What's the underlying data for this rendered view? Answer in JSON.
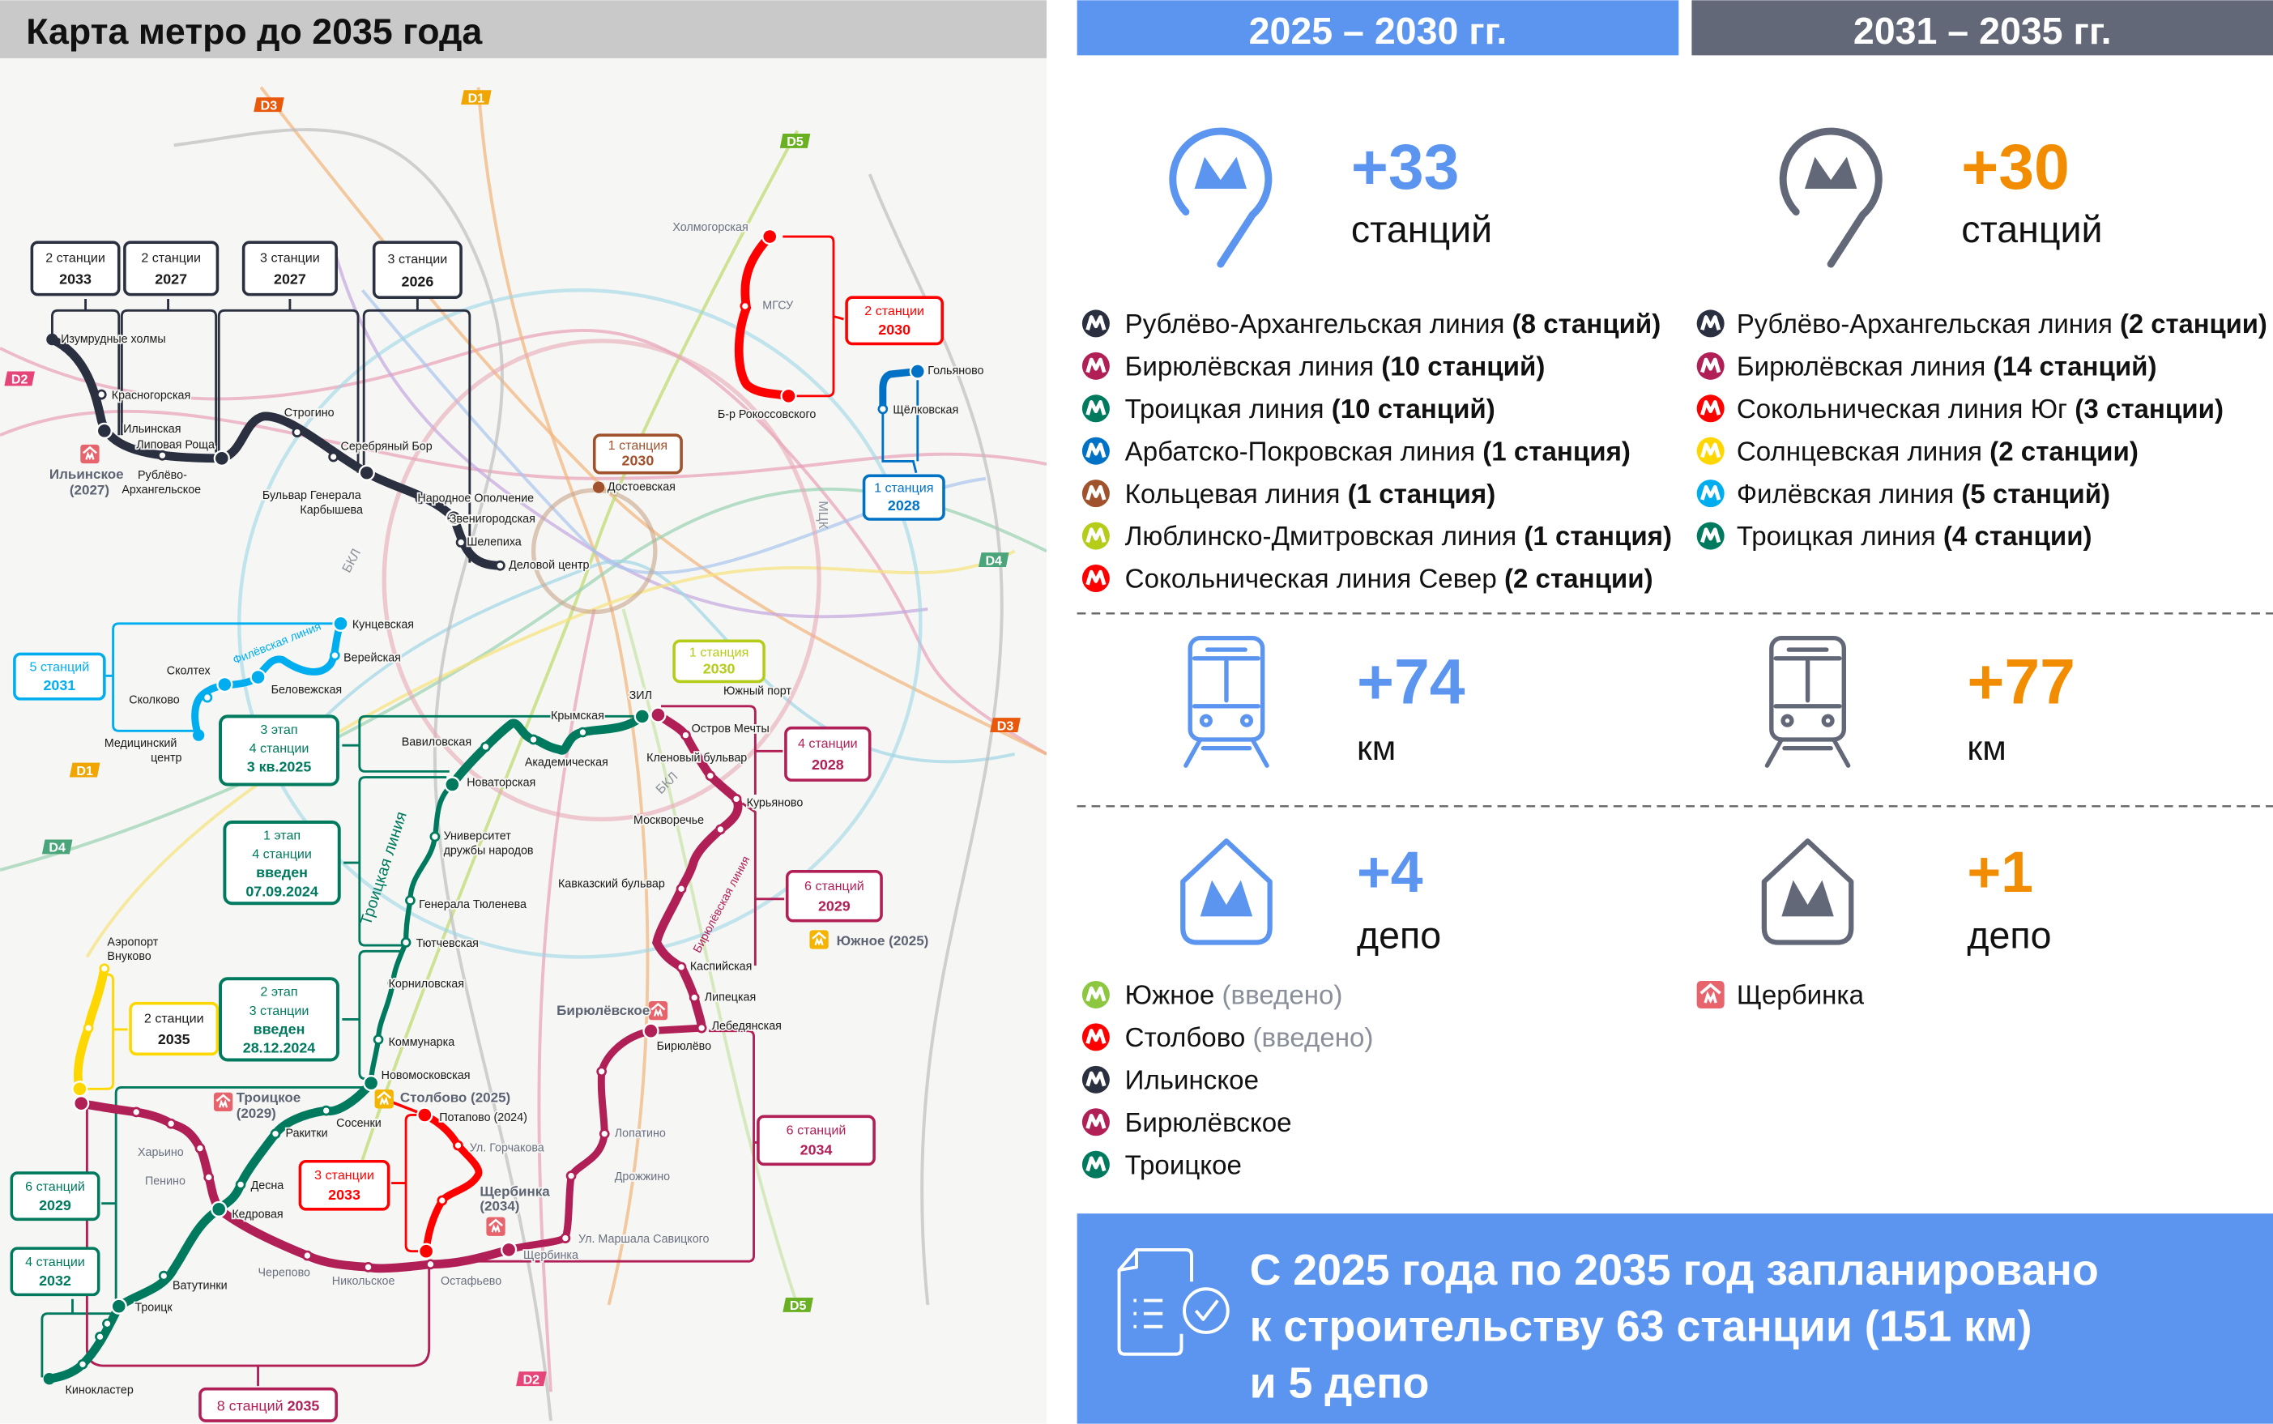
{
  "title": "Карта метро до 2035 года",
  "periods": [
    {
      "label": "2025 – 2030 гг.",
      "header_color": "#5b95f0",
      "accent": "#5b95f0",
      "number_color": "#5b95f0",
      "stations": {
        "value": "+33",
        "unit": "станций"
      },
      "km": {
        "value": "+74",
        "unit": "км"
      },
      "depots": {
        "value": "+4",
        "unit": "депо"
      },
      "lines": [
        {
          "name": "Рублёво-Архангельская линия ",
          "count": "(8 станций)",
          "color": "#2b3040"
        },
        {
          "name": "Бирюлёвская линия ",
          "count": "(10 станций)",
          "color": "#b11f57"
        },
        {
          "name": "Троицкая линия ",
          "count": "(10 станций)",
          "color": "#007a5e"
        },
        {
          "name": "Арбатско-Покровская линия ",
          "count": "(1 станция)",
          "color": "#0072c6"
        },
        {
          "name": "Кольцевая линия ",
          "count": "(1 станция)",
          "color": "#a0522d"
        },
        {
          "name": "Люблинско-Дмитровская линия ",
          "count": "(1 станция)",
          "color": "#b5cc18"
        },
        {
          "name": "Сокольническая линия Север ",
          "count": "(2 станции)",
          "color": "#ff0000"
        }
      ],
      "depot_list": [
        {
          "name": "Южное",
          "note": " (введено)",
          "color": "#8dc63f"
        },
        {
          "name": "Столбово",
          "note": " (введено)",
          "color": "#ff0000"
        },
        {
          "name": "Ильинское",
          "note": "",
          "color": "#2b3040"
        },
        {
          "name": "Бирюлёвское",
          "note": "",
          "color": "#b11f57"
        },
        {
          "name": "Троицкое",
          "note": "",
          "color": "#007a5e"
        }
      ]
    },
    {
      "label": "2031 – 2035 гг.",
      "header_color": "#626878",
      "accent": "#626878",
      "number_color": "#f28c00",
      "stations": {
        "value": "+30",
        "unit": "станций"
      },
      "km": {
        "value": "+77",
        "unit": "км"
      },
      "depots": {
        "value": "+1",
        "unit": "депо"
      },
      "lines": [
        {
          "name": "Рублёво-Архангельская линия ",
          "count": "(2 станции)",
          "color": "#2b3040"
        },
        {
          "name": "Бирюлёвская линия ",
          "count": "(14 станций)",
          "color": "#b11f57"
        },
        {
          "name": "Сокольническая линия Юг ",
          "count": "(3 станции)",
          "color": "#ff0000"
        },
        {
          "name": "Солнцевская линия ",
          "count": "(2 станции)",
          "color": "#ffd700"
        },
        {
          "name": "Филёвская линия ",
          "count": "(5 станций)",
          "color": "#00aeef"
        },
        {
          "name": "Троицкая линия ",
          "count": "(4 станции)",
          "color": "#007a5e"
        }
      ],
      "depot_list": [
        {
          "name": "Щербинка",
          "note": "",
          "color": "#e8646c",
          "icon": "depot-icon"
        }
      ]
    }
  ],
  "summary": {
    "icon": "document-check-icon",
    "lines": [
      "С 2025 года по 2035 год запланировано",
      "к строительству 63 станции (151 км)",
      "и 5 депо"
    ]
  },
  "map": {
    "line_colors": {
      "rublevo": "#2b3040",
      "biryulyovskaya": "#b11f57",
      "troitskaya": "#007a5e",
      "sokolnicheskaya": "#ff0000",
      "arbatsko": "#0072c6",
      "filevskaya": "#00aeef",
      "koltsevaya": "#a0522d",
      "lyublinskaya": "#b5cc18",
      "solntsevskaya": "#ffd700"
    },
    "labels": [
      "Изумрудные холмы",
      "Красногорская",
      "Ильинская",
      "Липовая Роща",
      "Рублёво-",
      "Архангельское",
      "Строгино",
      "Серебряный Бор",
      "Бульвар Генерала",
      "Карбышева",
      "Народное Ополчение",
      "Звенигородская",
      "Шелепиха",
      "Деловой центр",
      "Холмогорская",
      "МГСУ",
      "Б-р Рокоссовского",
      "Гольяново",
      "Щёлковская",
      "Достоевская",
      "Кунцевская",
      "Верейская",
      "Беловежская",
      "Сколтех",
      "Сколково",
      "Медицинский",
      "центр",
      "ЗИЛ",
      "Южный порт",
      "Крымская",
      "Остров Мечты",
      "Академическая",
      "Кленовый бульвар",
      "Вавиловская",
      "Новаторская",
      "Курьяново",
      "Москворечье",
      "Университет",
      "дружбы народов",
      "Кавказский бульвар",
      "Генерала Тюленева",
      "Тютчевская",
      "Каспийская",
      "Корниловская",
      "Липецкая",
      "Лебедянская",
      "Коммунарка",
      "Бирюлёво",
      "Новомосковская",
      "Аэропорт",
      "Внуково",
      "Потапово (2024)",
      "Сосенки",
      "Ракитки",
      "Лопатино",
      "Ул. Горчакова",
      "Харьино",
      "Дрожжино",
      "Пенино",
      "Десна",
      "Кедровая",
      "Ул. Маршала Савицкого",
      "Щербинка",
      "Черепово",
      "Никольское",
      "Остафьево",
      "Ватутинки",
      "Троицк",
      "Кинокластер"
    ],
    "line_labels": [
      "Филёвская линия",
      "Троицкая линия",
      "Бирюлёвская линия",
      "БКЛ",
      "БКЛ",
      "МЦК"
    ],
    "depots": [
      {
        "name": "Ильинское",
        "year": "(2027)"
      },
      {
        "name": "Южное (2025)",
        "year": ""
      },
      {
        "name": "Бирюлёвское",
        "year": ""
      },
      {
        "name": "Троицкое",
        "year": "(2029)"
      },
      {
        "name": "Столбово (2025)",
        "year": ""
      },
      {
        "name": "Щербинка",
        "year": "(2034)"
      }
    ],
    "callouts": [
      {
        "top": "2 станции",
        "bottom": "2033",
        "color": "#2b3040"
      },
      {
        "top": "2 станции",
        "bottom": "2027",
        "color": "#2b3040"
      },
      {
        "top": "3 станции",
        "bottom": "2027",
        "color": "#2b3040"
      },
      {
        "top": "3 станции",
        "bottom": "2026",
        "color": "#2b3040"
      },
      {
        "top": "2 станции",
        "bottom": "2030",
        "color": "#ff0000"
      },
      {
        "top": "1 станция",
        "bottom": "2028",
        "color": "#0072c6"
      },
      {
        "top": "1 станция",
        "bottom": "2030",
        "color": "#a0522d"
      },
      {
        "top": "5 станций",
        "bottom": "2031",
        "color": "#00aeef"
      },
      {
        "top": "1 станция",
        "bottom": "2030",
        "color": "#b5cc18"
      },
      {
        "top": "4 станции",
        "bottom": "2028",
        "color": "#b11f57"
      },
      {
        "top": "6 станций",
        "bottom": "2029",
        "color": "#b11f57"
      },
      {
        "top": "6 станций",
        "bottom": "2034",
        "color": "#b11f57"
      },
      {
        "top": "2 станции",
        "bottom": "2035",
        "color": "#ffd700"
      },
      {
        "top": "3 станции",
        "bottom": "2033",
        "color": "#ff0000"
      },
      {
        "top": "6 станций",
        "bottom": "2029",
        "color": "#007a5e"
      },
      {
        "top": "4 станции",
        "bottom": "2032",
        "color": "#007a5e"
      }
    ],
    "stage_boxes": [
      {
        "lines": [
          "3 этап",
          "4 станции"
        ],
        "bold": [
          "3 кв.2025"
        ]
      },
      {
        "lines": [
          "1 этап",
          "4 станции"
        ],
        "bold": [
          "введен",
          "07.09.2024"
        ]
      },
      {
        "lines": [
          "2 этап",
          "3 станции"
        ],
        "bold": [
          "введен",
          "28.12.2024"
        ]
      }
    ],
    "bottom_callout": {
      "text": "8 станций ",
      "bold": "2035"
    },
    "d_labels": [
      {
        "text": "D3",
        "color": "#e8590c"
      },
      {
        "text": "D1",
        "color": "#f0a500"
      },
      {
        "text": "D5",
        "color": "#6ab023"
      },
      {
        "text": "D2",
        "color": "#e6457a"
      },
      {
        "text": "D4",
        "color": "#4aa57a"
      },
      {
        "text": "D3",
        "color": "#e8590c"
      },
      {
        "text": "D1",
        "color": "#f0a500"
      },
      {
        "text": "D4",
        "color": "#4aa57a"
      },
      {
        "text": "D5",
        "color": "#6ab023"
      },
      {
        "text": "D2",
        "color": "#e6457a"
      }
    ]
  }
}
